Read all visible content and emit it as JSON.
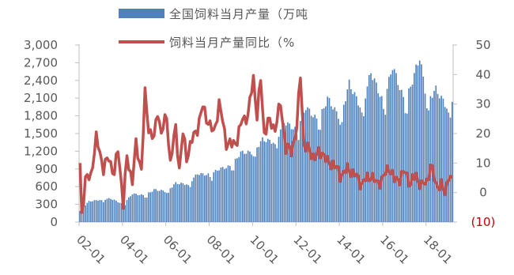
{
  "chart_data": {
    "type": "bar",
    "x_tick_labels": [
      "02-01",
      "04-01",
      "06-01",
      "08-01",
      "10-01",
      "12-01",
      "14-01",
      "16-01",
      "18-01"
    ],
    "x_start": "2002-01",
    "x_end": "2019-03",
    "left_axis": {
      "range": [
        0,
        3000
      ],
      "ticks": [
        0,
        300,
        600,
        900,
        1200,
        1500,
        1800,
        2100,
        2400,
        2700,
        3000
      ],
      "tick_labels": [
        "0",
        "300",
        "600",
        "900",
        "1,200",
        "1,500",
        "1,800",
        "2,100",
        "2,400",
        "2,700",
        "3,000"
      ]
    },
    "right_axis": {
      "range": [
        -10,
        50
      ],
      "ticks": [
        -10,
        0,
        10,
        20,
        30,
        40,
        50
      ],
      "tick_labels": [
        "(10)",
        "0",
        "10",
        "20",
        "30",
        "40",
        "50"
      ],
      "negative_color": "#c00000"
    },
    "series": [
      {
        "name": "全国饲料当月产量（万吨",
        "type": "bar",
        "axis": "left",
        "color": "#4f81bd",
        "anchors": [
          [
            "2002-01",
            200
          ],
          [
            "2002-06",
            350
          ],
          [
            "2003-01",
            380
          ],
          [
            "2003-06",
            400
          ],
          [
            "2004-01",
            300
          ],
          [
            "2004-06",
            480
          ],
          [
            "2005-01",
            450
          ],
          [
            "2005-06",
            550
          ],
          [
            "2006-01",
            520
          ],
          [
            "2006-06",
            660
          ],
          [
            "2007-01",
            640
          ],
          [
            "2007-06",
            820
          ],
          [
            "2008-01",
            800
          ],
          [
            "2008-06",
            900
          ],
          [
            "2009-01",
            950
          ],
          [
            "2009-06",
            1180
          ],
          [
            "2010-01",
            1180
          ],
          [
            "2010-06",
            1400
          ],
          [
            "2011-01",
            1350
          ],
          [
            "2011-06",
            1700
          ],
          [
            "2012-01",
            1550
          ],
          [
            "2012-06",
            1950
          ],
          [
            "2013-01",
            1700
          ],
          [
            "2013-06",
            2100
          ],
          [
            "2014-01",
            1750
          ],
          [
            "2014-06",
            2350
          ],
          [
            "2015-01",
            1900
          ],
          [
            "2015-06",
            2550
          ],
          [
            "2016-01",
            2000
          ],
          [
            "2016-06",
            2650
          ],
          [
            "2017-01",
            2000
          ],
          [
            "2017-09",
            2800
          ],
          [
            "2018-01",
            2050
          ],
          [
            "2018-06",
            2250
          ],
          [
            "2019-01",
            1900
          ],
          [
            "2019-03",
            2100
          ]
        ]
      },
      {
        "name": "饲料当月产量同比（%",
        "type": "line",
        "axis": "right",
        "color": "#c0504d",
        "anchors": [
          [
            "2002-01",
            10
          ],
          [
            "2002-02",
            -7
          ],
          [
            "2002-04",
            4
          ],
          [
            "2002-07",
            6
          ],
          [
            "2002-10",
            18
          ],
          [
            "2002-12",
            14
          ],
          [
            "2003-02",
            8
          ],
          [
            "2003-05",
            12
          ],
          [
            "2003-08",
            6
          ],
          [
            "2003-10",
            15
          ],
          [
            "2003-12",
            3
          ],
          [
            "2004-01",
            -4
          ],
          [
            "2004-03",
            12
          ],
          [
            "2004-06",
            4
          ],
          [
            "2004-08",
            16
          ],
          [
            "2004-11",
            8
          ],
          [
            "2005-01",
            33
          ],
          [
            "2005-03",
            22
          ],
          [
            "2005-06",
            18
          ],
          [
            "2005-08",
            28
          ],
          [
            "2005-10",
            20
          ],
          [
            "2006-01",
            26
          ],
          [
            "2006-03",
            10
          ],
          [
            "2006-06",
            22
          ],
          [
            "2006-08",
            8
          ],
          [
            "2006-10",
            20
          ],
          [
            "2006-12",
            12
          ],
          [
            "2007-02",
            16
          ],
          [
            "2007-06",
            22
          ],
          [
            "2007-09",
            29
          ],
          [
            "2007-12",
            24
          ],
          [
            "2008-03",
            20
          ],
          [
            "2008-06",
            30
          ],
          [
            "2008-08",
            24
          ],
          [
            "2008-10",
            17
          ],
          [
            "2009-01",
            16
          ],
          [
            "2009-04",
            18
          ],
          [
            "2009-07",
            25
          ],
          [
            "2009-10",
            26
          ],
          [
            "2010-01",
            39
          ],
          [
            "2010-03",
            26
          ],
          [
            "2010-05",
            38
          ],
          [
            "2010-07",
            20
          ],
          [
            "2010-09",
            24
          ],
          [
            "2011-01",
            22
          ],
          [
            "2011-04",
            30
          ],
          [
            "2011-07",
            15
          ],
          [
            "2011-10",
            14
          ],
          [
            "2012-01",
            22
          ],
          [
            "2012-03",
            40
          ],
          [
            "2012-05",
            16
          ],
          [
            "2012-08",
            14
          ],
          [
            "2012-11",
            12
          ],
          [
            "2013-03",
            14
          ],
          [
            "2013-06",
            10
          ],
          [
            "2013-09",
            10
          ],
          [
            "2014-01",
            6
          ],
          [
            "2014-06",
            8
          ],
          [
            "2014-09",
            6
          ],
          [
            "2015-01",
            3
          ],
          [
            "2015-06",
            6
          ],
          [
            "2015-09",
            3
          ],
          [
            "2016-01",
            5
          ],
          [
            "2016-04",
            9
          ],
          [
            "2016-07",
            4
          ],
          [
            "2016-10",
            5
          ],
          [
            "2017-01",
            7
          ],
          [
            "2017-04",
            3
          ],
          [
            "2017-07",
            6
          ],
          [
            "2017-10",
            2
          ],
          [
            "2018-01",
            4
          ],
          [
            "2018-03",
            9
          ],
          [
            "2018-06",
            3
          ],
          [
            "2018-09",
            2
          ],
          [
            "2018-11",
            0
          ],
          [
            "2019-01",
            6
          ],
          [
            "2019-03",
            3
          ]
        ]
      }
    ],
    "legend": "top",
    "grid": false
  }
}
